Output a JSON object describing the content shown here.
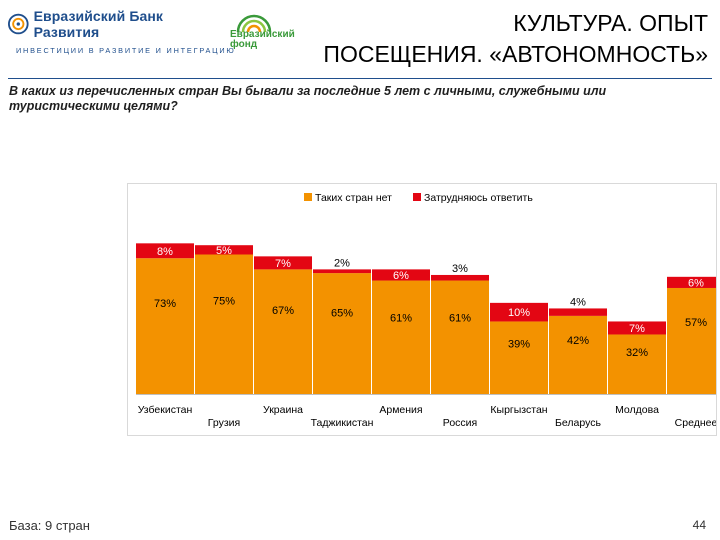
{
  "header": {
    "logo_name": "Евразийский Банк Развития",
    "logo_tagline": "ИНВЕСТИЦИИ В РАЗВИТИЕ И ИНТЕГРАЦИЮ",
    "fund_line1": "Евразийский",
    "fund_line2": "фонд",
    "title_line1": "КУЛЬТУРА. ОПЫТ",
    "title_line2": "ПОСЕЩЕНИЯ. «АВТОНОМНОСТЬ»"
  },
  "question": "В каких из перечисленных стран Вы бывали за последние 5 лет с личными, служебными или туристическими целями?",
  "footer": {
    "base": "База: 9 стран",
    "page": "44"
  },
  "colors": {
    "orange": "#f39200",
    "red": "#e30613",
    "brand_blue": "#1f4e8c",
    "brand_green": "#3a9a3a"
  },
  "chart_data": {
    "type": "bar",
    "stacked": true,
    "title": "",
    "xlabel": "",
    "ylabel": "",
    "ylim": [
      0,
      100
    ],
    "grid": false,
    "legend_position": "top",
    "categories": [
      "Узбекистан",
      "Грузия",
      "Украина",
      "Таджикистан",
      "Армения",
      "Россия",
      "Кыргызстан",
      "Беларусь",
      "Молдова",
      "Среднее"
    ],
    "series": [
      {
        "name": "Таких стран нет",
        "color": "#f39200",
        "values": [
          73,
          75,
          67,
          65,
          61,
          61,
          39,
          42,
          32,
          57
        ]
      },
      {
        "name": "Затрудняюсь ответить",
        "color": "#e30613",
        "values": [
          8,
          5,
          7,
          2,
          6,
          3,
          10,
          4,
          7,
          6
        ]
      }
    ]
  }
}
